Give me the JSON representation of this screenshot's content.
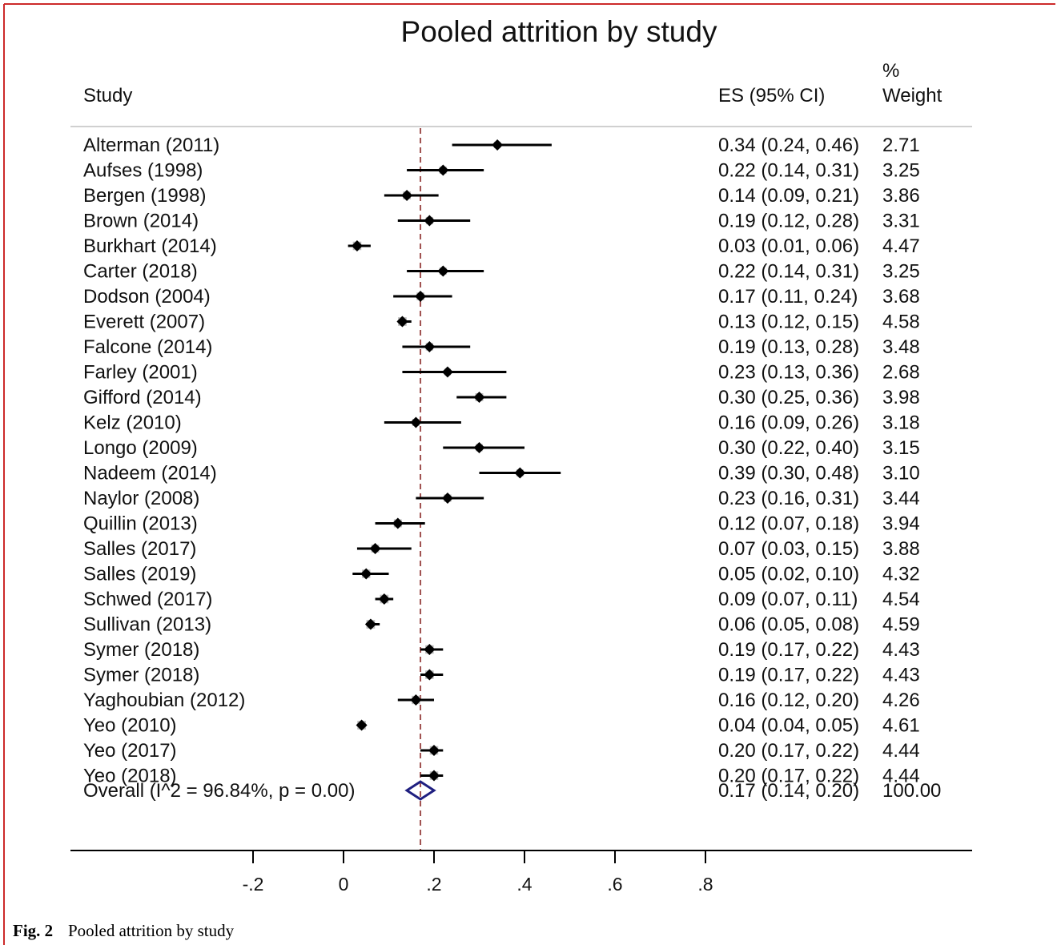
{
  "chart_data": {
    "type": "forest",
    "title": "Pooled attrition by study",
    "columns": {
      "study": "Study",
      "es": "ES (95% CI)",
      "weight_line1": "%",
      "weight_line2": "Weight"
    },
    "studies": [
      {
        "label": "Alterman (2011)",
        "es": 0.34,
        "lo": 0.24,
        "hi": 0.46,
        "es_text": "0.34 (0.24, 0.46)",
        "weight": 2.71,
        "weight_text": "2.71"
      },
      {
        "label": "Aufses (1998)",
        "es": 0.22,
        "lo": 0.14,
        "hi": 0.31,
        "es_text": "0.22 (0.14, 0.31)",
        "weight": 3.25,
        "weight_text": "3.25"
      },
      {
        "label": "Bergen (1998)",
        "es": 0.14,
        "lo": 0.09,
        "hi": 0.21,
        "es_text": "0.14 (0.09, 0.21)",
        "weight": 3.86,
        "weight_text": "3.86"
      },
      {
        "label": "Brown (2014)",
        "es": 0.19,
        "lo": 0.12,
        "hi": 0.28,
        "es_text": "0.19 (0.12, 0.28)",
        "weight": 3.31,
        "weight_text": "3.31"
      },
      {
        "label": "Burkhart (2014)",
        "es": 0.03,
        "lo": 0.01,
        "hi": 0.06,
        "es_text": "0.03 (0.01, 0.06)",
        "weight": 4.47,
        "weight_text": "4.47"
      },
      {
        "label": "Carter (2018)",
        "es": 0.22,
        "lo": 0.14,
        "hi": 0.31,
        "es_text": "0.22 (0.14, 0.31)",
        "weight": 3.25,
        "weight_text": "3.25"
      },
      {
        "label": "Dodson (2004)",
        "es": 0.17,
        "lo": 0.11,
        "hi": 0.24,
        "es_text": "0.17 (0.11, 0.24)",
        "weight": 3.68,
        "weight_text": "3.68"
      },
      {
        "label": "Everett (2007)",
        "es": 0.13,
        "lo": 0.12,
        "hi": 0.15,
        "es_text": "0.13 (0.12, 0.15)",
        "weight": 4.58,
        "weight_text": "4.58"
      },
      {
        "label": "Falcone (2014)",
        "es": 0.19,
        "lo": 0.13,
        "hi": 0.28,
        "es_text": "0.19 (0.13, 0.28)",
        "weight": 3.48,
        "weight_text": "3.48"
      },
      {
        "label": "Farley (2001)",
        "es": 0.23,
        "lo": 0.13,
        "hi": 0.36,
        "es_text": "0.23 (0.13, 0.36)",
        "weight": 2.68,
        "weight_text": "2.68"
      },
      {
        "label": "Gifford (2014)",
        "es": 0.3,
        "lo": 0.25,
        "hi": 0.36,
        "es_text": "0.30 (0.25, 0.36)",
        "weight": 3.98,
        "weight_text": "3.98"
      },
      {
        "label": "Kelz (2010)",
        "es": 0.16,
        "lo": 0.09,
        "hi": 0.26,
        "es_text": "0.16 (0.09, 0.26)",
        "weight": 3.18,
        "weight_text": "3.18"
      },
      {
        "label": "Longo (2009)",
        "es": 0.3,
        "lo": 0.22,
        "hi": 0.4,
        "es_text": "0.30 (0.22, 0.40)",
        "weight": 3.15,
        "weight_text": "3.15"
      },
      {
        "label": "Nadeem (2014)",
        "es": 0.39,
        "lo": 0.3,
        "hi": 0.48,
        "es_text": "0.39 (0.30, 0.48)",
        "weight": 3.1,
        "weight_text": "3.10"
      },
      {
        "label": "Naylor (2008)",
        "es": 0.23,
        "lo": 0.16,
        "hi": 0.31,
        "es_text": "0.23 (0.16, 0.31)",
        "weight": 3.44,
        "weight_text": "3.44"
      },
      {
        "label": "Quillin (2013)",
        "es": 0.12,
        "lo": 0.07,
        "hi": 0.18,
        "es_text": "0.12 (0.07, 0.18)",
        "weight": 3.94,
        "weight_text": "3.94"
      },
      {
        "label": "Salles (2017)",
        "es": 0.07,
        "lo": 0.03,
        "hi": 0.15,
        "es_text": "0.07 (0.03, 0.15)",
        "weight": 3.88,
        "weight_text": "3.88"
      },
      {
        "label": "Salles (2019)",
        "es": 0.05,
        "lo": 0.02,
        "hi": 0.1,
        "es_text": "0.05 (0.02, 0.10)",
        "weight": 4.32,
        "weight_text": "4.32"
      },
      {
        "label": "Schwed (2017)",
        "es": 0.09,
        "lo": 0.07,
        "hi": 0.11,
        "es_text": "0.09 (0.07, 0.11)",
        "weight": 4.54,
        "weight_text": "4.54"
      },
      {
        "label": "Sullivan (2013)",
        "es": 0.06,
        "lo": 0.05,
        "hi": 0.08,
        "es_text": "0.06 (0.05, 0.08)",
        "weight": 4.59,
        "weight_text": "4.59"
      },
      {
        "label": "Symer (2018)",
        "es": 0.19,
        "lo": 0.17,
        "hi": 0.22,
        "es_text": "0.19 (0.17, 0.22)",
        "weight": 4.43,
        "weight_text": "4.43"
      },
      {
        "label": "Symer (2018)",
        "es": 0.19,
        "lo": 0.17,
        "hi": 0.22,
        "es_text": "0.19 (0.17, 0.22)",
        "weight": 4.43,
        "weight_text": "4.43"
      },
      {
        "label": "Yaghoubian (2012)",
        "es": 0.16,
        "lo": 0.12,
        "hi": 0.2,
        "es_text": "0.16 (0.12, 0.20)",
        "weight": 4.26,
        "weight_text": "4.26"
      },
      {
        "label": "Yeo (2010)",
        "es": 0.04,
        "lo": 0.04,
        "hi": 0.05,
        "es_text": "0.04 (0.04, 0.05)",
        "weight": 4.61,
        "weight_text": "4.61"
      },
      {
        "label": "Yeo (2017)",
        "es": 0.2,
        "lo": 0.17,
        "hi": 0.22,
        "es_text": "0.20 (0.17, 0.22)",
        "weight": 4.44,
        "weight_text": "4.44"
      },
      {
        "label": "Yeo (2018)",
        "es": 0.2,
        "lo": 0.17,
        "hi": 0.22,
        "es_text": "0.20 (0.17, 0.22)",
        "weight": 4.44,
        "weight_text": "4.44"
      }
    ],
    "overall": {
      "label": "Overall  (I^2 = 96.84%, p = 0.00)",
      "es": 0.17,
      "lo": 0.14,
      "hi": 0.2,
      "es_text": "0.17 (0.14, 0.20)",
      "weight_text": "100.00"
    },
    "x_ticks": [
      -0.2,
      0,
      0.2,
      0.4,
      0.6,
      0.8
    ],
    "x_tick_labels": [
      "-.2",
      "0",
      ".2",
      ".4",
      ".6",
      ".8"
    ],
    "xlim": [
      -0.2,
      0.8
    ],
    "grid": false,
    "colors": {
      "point": "#000000",
      "weight_box": "#bdbdbd",
      "ci_line": "#000000",
      "reference_line": "#a0504f",
      "overall_diamond": "#1f1f80",
      "frame_border": "#cc2a2a"
    }
  },
  "caption": {
    "label": "Fig. 2",
    "text": "Pooled attrition by study"
  }
}
